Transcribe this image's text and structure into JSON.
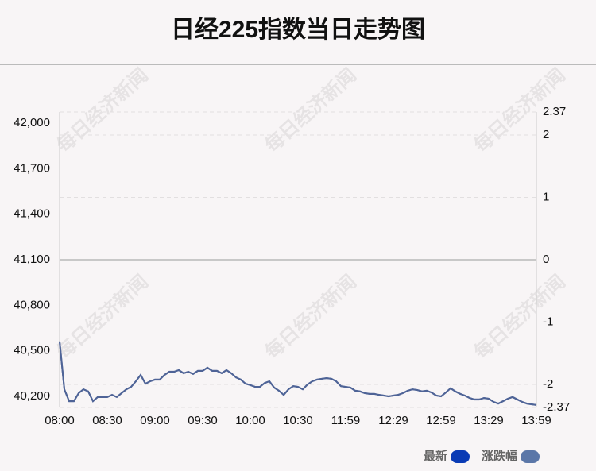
{
  "chart_data": {
    "type": "line",
    "title": "日经225指数当日走势图",
    "watermark": "每日经济新闻",
    "ylim": [
      40126,
      42074
    ],
    "yticks": [
      {
        "value": 42000,
        "label": "42,000"
      },
      {
        "value": 41700,
        "label": "41,700"
      },
      {
        "value": 41400,
        "label": "41,400"
      },
      {
        "value": 41100,
        "label": "41,100"
      },
      {
        "value": 40800,
        "label": "40,800"
      },
      {
        "value": 40500,
        "label": "40,500"
      },
      {
        "value": 40200,
        "label": "40,200"
      }
    ],
    "y2lim": [
      -2.37,
      2.37
    ],
    "y2ticks": [
      2.37,
      2,
      1,
      0,
      -1,
      -2,
      -2.37
    ],
    "xlim": [
      0,
      10
    ],
    "xticks": [
      {
        "value": 0,
        "label": "08:00"
      },
      {
        "value": 1,
        "label": "08:30"
      },
      {
        "value": 2,
        "label": "09:00"
      },
      {
        "value": 3,
        "label": "09:30"
      },
      {
        "value": 4,
        "label": "10:00"
      },
      {
        "value": 5,
        "label": "10:30"
      },
      {
        "value": 6,
        "label": "11:59"
      },
      {
        "value": 7,
        "label": "12:29"
      },
      {
        "value": 8,
        "label": "12:59"
      },
      {
        "value": 9,
        "label": "13:29"
      },
      {
        "value": 10,
        "label": "13:59"
      }
    ],
    "grid": true,
    "x": [
      0,
      0.1,
      0.2,
      0.3,
      0.4,
      0.5,
      0.6,
      0.7,
      0.8,
      0.9,
      1,
      1.1,
      1.2,
      1.3,
      1.4,
      1.5,
      1.6,
      1.7,
      1.8,
      1.9,
      2,
      2.1,
      2.2,
      2.3,
      2.4,
      2.5,
      2.6,
      2.7,
      2.8,
      2.9,
      3,
      3.1,
      3.2,
      3.3,
      3.4,
      3.5,
      3.6,
      3.7,
      3.8,
      3.9,
      4,
      4.1,
      4.2,
      4.3,
      4.4,
      4.5,
      4.6,
      4.7,
      4.8,
      4.9,
      5,
      5.1,
      5.2,
      5.3,
      5.4,
      5.5,
      5.6,
      5.7,
      5.8,
      5.9,
      6,
      6.1,
      6.2,
      6.3,
      6.4,
      6.5,
      6.6,
      6.7,
      6.8,
      6.9,
      7,
      7.1,
      7.2,
      7.3,
      7.4,
      7.5,
      7.6,
      7.7,
      7.8,
      7.9,
      8,
      8.1,
      8.2,
      8.3,
      8.4,
      8.5,
      8.6,
      8.7,
      8.8,
      8.9,
      9,
      9.1,
      9.2,
      9.3,
      9.4,
      9.5,
      9.6,
      9.7,
      9.8,
      9.9,
      10
    ],
    "series": [
      {
        "name": "最新",
        "color": "#0a3bb5",
        "line_color": "#4a5f94",
        "values": [
          40561,
          40246,
          40168,
          40168,
          40220,
          40246,
          40231,
          40168,
          40194,
          40194,
          40194,
          40210,
          40194,
          40220,
          40246,
          40262,
          40299,
          40341,
          40283,
          40299,
          40309,
          40309,
          40341,
          40362,
          40362,
          40372,
          40351,
          40362,
          40346,
          40367,
          40367,
          40388,
          40367,
          40367,
          40351,
          40372,
          40351,
          40325,
          40309,
          40283,
          40273,
          40262,
          40262,
          40288,
          40299,
          40257,
          40236,
          40210,
          40246,
          40267,
          40262,
          40246,
          40278,
          40299,
          40309,
          40315,
          40320,
          40315,
          40299,
          40267,
          40262,
          40257,
          40236,
          40231,
          40220,
          40215,
          40215,
          40210,
          40205,
          40199,
          40205,
          40210,
          40220,
          40236,
          40246,
          40241,
          40231,
          40236,
          40225,
          40205,
          40199,
          40225,
          40252,
          40231,
          40215,
          40205,
          40189,
          40178,
          40178,
          40189,
          40184,
          40163,
          40152,
          40168,
          40184,
          40194,
          40178,
          40163,
          40152,
          40147,
          40142
        ]
      },
      {
        "name": "涨跌幅",
        "color": "#5b77a8",
        "line_color": "#4f6497",
        "axis": "y2",
        "values": [
          -1.31,
          -2.08,
          -2.27,
          -2.27,
          -2.14,
          -2.08,
          -2.11,
          -2.27,
          -2.2,
          -2.2,
          -2.2,
          -2.17,
          -2.2,
          -2.14,
          -2.08,
          -2.04,
          -1.95,
          -1.85,
          -1.99,
          -1.95,
          -1.92,
          -1.92,
          -1.85,
          -1.8,
          -1.8,
          -1.77,
          -1.82,
          -1.8,
          -1.83,
          -1.78,
          -1.78,
          -1.73,
          -1.78,
          -1.78,
          -1.82,
          -1.77,
          -1.82,
          -1.89,
          -1.92,
          -1.99,
          -2.01,
          -2.04,
          -2.04,
          -1.98,
          -1.95,
          -2.05,
          -2.1,
          -2.17,
          -2.08,
          -2.03,
          -2.04,
          -2.08,
          -2,
          -1.95,
          -1.92,
          -1.91,
          -1.9,
          -1.91,
          -1.95,
          -2.03,
          -2.04,
          -2.05,
          -2.1,
          -2.11,
          -2.14,
          -2.15,
          -2.15,
          -2.17,
          -2.18,
          -2.19,
          -2.18,
          -2.17,
          -2.14,
          -2.1,
          -2.08,
          -2.09,
          -2.11,
          -2.1,
          -2.13,
          -2.18,
          -2.19,
          -2.13,
          -2.06,
          -2.11,
          -2.15,
          -2.18,
          -2.22,
          -2.24,
          -2.24,
          -2.22,
          -2.23,
          -2.28,
          -2.31,
          -2.27,
          -2.23,
          -2.2,
          -2.24,
          -2.28,
          -2.31,
          -2.32,
          -2.33
        ]
      }
    ]
  }
}
